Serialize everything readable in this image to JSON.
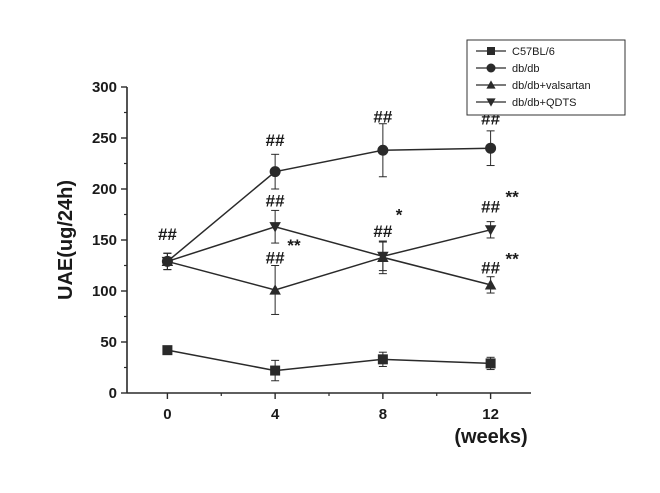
{
  "chart_data": {
    "type": "line",
    "title": "",
    "xlabel": "(weeks)",
    "ylabel": "UAE(ug/24h)",
    "x": [
      0,
      4,
      8,
      12
    ],
    "xlim": [
      -1.5,
      13.5
    ],
    "ylim": [
      0,
      300
    ],
    "xticks": [
      "0",
      "4",
      "8",
      "12"
    ],
    "yticks": [
      "0",
      "50",
      "100",
      "150",
      "200",
      "250",
      "300"
    ],
    "legend_position": "top-right",
    "grid": false,
    "series": [
      {
        "name": "C57BL/6",
        "marker": "square",
        "values": [
          42,
          22,
          33,
          29
        ],
        "errors": [
          0,
          10,
          7,
          6
        ]
      },
      {
        "name": "db/db",
        "marker": "circle",
        "values": [
          129,
          217,
          238,
          240
        ],
        "errors": [
          8,
          17,
          26,
          17
        ]
      },
      {
        "name": "db/db+valsartan",
        "marker": "triangle-up",
        "values": [
          129,
          101,
          133,
          106
        ],
        "errors": [
          8,
          24,
          16,
          8
        ]
      },
      {
        "name": "db/db+QDTS",
        "marker": "triangle-down",
        "values": [
          129,
          163,
          134,
          160
        ],
        "errors": [
          8,
          16,
          14,
          8
        ]
      }
    ],
    "annotations": [
      {
        "text": "##",
        "x": 0,
        "y": 150
      },
      {
        "text": "##",
        "x": 4,
        "y": 242
      },
      {
        "text": "##",
        "x": 4,
        "y": 183
      },
      {
        "text": "##",
        "x": 4,
        "y": 127
      },
      {
        "text": "**",
        "x": 4.7,
        "y": 139
      },
      {
        "text": "##",
        "x": 8,
        "y": 265
      },
      {
        "text": "##",
        "x": 8,
        "y": 153
      },
      {
        "text": "*",
        "x": 8.6,
        "y": 169
      },
      {
        "text": "##",
        "x": 12,
        "y": 263
      },
      {
        "text": "##",
        "x": 12,
        "y": 177
      },
      {
        "text": "**",
        "x": 12.8,
        "y": 187
      },
      {
        "text": "##",
        "x": 12,
        "y": 117
      },
      {
        "text": "**",
        "x": 12.8,
        "y": 126
      }
    ]
  }
}
